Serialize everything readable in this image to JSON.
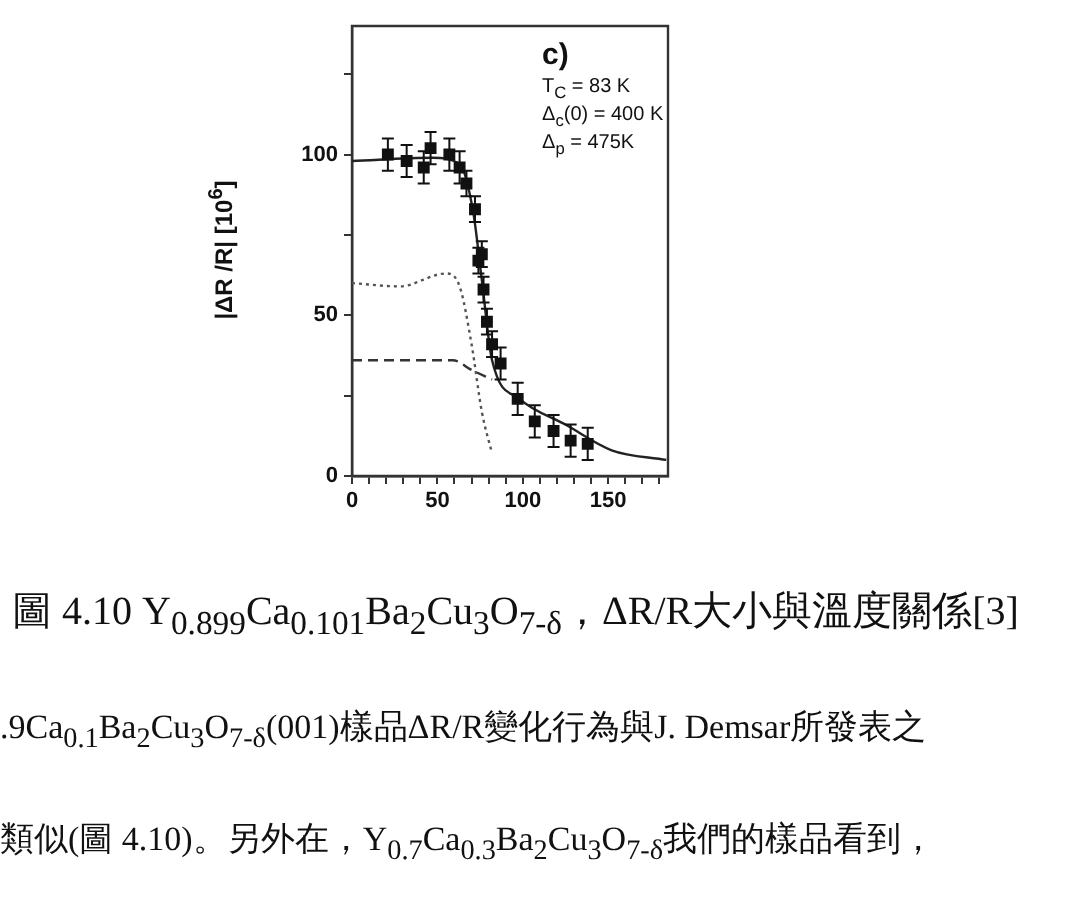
{
  "chart_data": {
    "type": "scatter",
    "title": "圖 4.10 Y$_{0.899}$Ca$_{0.101}$Ba$_{2}$Cu$_{3}$O$_{7-δ}$，ΔR/R大小與溫度關係[3]",
    "ylabel": "|ΔR /R| [10$^{6}$]",
    "xlim": [
      0,
      185
    ],
    "xticks": [
      0,
      {
        "value": 10,
        "label": null
      },
      {
        "value": 20,
        "label": null
      },
      {
        "value": 30,
        "label": null
      },
      {
        "value": 40,
        "label": null
      },
      50,
      {
        "value": 60,
        "label": null
      },
      {
        "value": 70,
        "label": null
      },
      {
        "value": 80,
        "label": null
      },
      {
        "value": 90,
        "label": null
      },
      100,
      {
        "value": 110,
        "label": null
      },
      {
        "value": 120,
        "label": null
      },
      {
        "value": 130,
        "label": null
      },
      {
        "value": 140,
        "label": null
      },
      150,
      {
        "value": 160,
        "label": null
      },
      {
        "value": 170,
        "label": null
      },
      {
        "value": 180,
        "label": null
      }
    ],
    "ylim": [
      0,
      140
    ],
    "yticks": [
      0,
      {
        "value": 25,
        "label": null
      },
      50,
      {
        "value": 75,
        "label": null
      },
      100,
      {
        "value": 125,
        "label": null
      }
    ],
    "grid": false,
    "legend": false,
    "annotations": [
      "c)",
      "T$_{C}$ = 83 K",
      "Δ$_{c}$(0) = 400 K",
      "Δ$_{p}$ = 475K",
      ".9Ca$_{0.1}$Ba$_{2}$Cu$_{3}$O$_{7-δ}$(001)樣品ΔR/R變化行為與J. Demsar所發表之",
      "類似(圖 4.10)。另外在，Y$_{0.7}$Ca$_{0.3}$Ba$_{2}$Cu$_{3}$O$_{7-δ}$我們的樣品看到，"
    ],
    "series": [
      {
        "type": "scatter",
        "color": "#111111",
        "marker": "square",
        "x": [
          21,
          32,
          42,
          46,
          57,
          63,
          67,
          72,
          74,
          76,
          77,
          79,
          82,
          87,
          97,
          107,
          118,
          128,
          138
        ],
        "values": [
          100,
          98,
          96,
          102,
          100,
          96,
          91,
          83,
          67,
          69,
          58,
          48,
          41,
          35,
          24,
          17,
          14,
          11,
          10
        ],
        "errors": [
          5,
          5,
          5,
          5,
          5,
          5,
          4,
          4,
          4,
          4,
          4,
          4,
          4,
          5,
          5,
          5,
          5,
          5,
          5
        ]
      },
      {
        "type": "line",
        "color": "#222222",
        "line_style": "solid",
        "marker": "none",
        "x": [
          0,
          47,
          63,
          71,
          76,
          82,
          98,
          125,
          152,
          184
        ],
        "values": [
          98,
          99,
          97,
          82,
          61,
          36,
          24,
          16,
          8,
          5
        ]
      },
      {
        "type": "line",
        "color": "#555555",
        "line_style": "dotted",
        "marker": "none",
        "x": [
          0,
          28,
          55,
          63,
          70,
          76,
          82
        ],
        "values": [
          60,
          59,
          63,
          59,
          41,
          20,
          7
        ]
      },
      {
        "type": "line",
        "color": "#333333",
        "line_style": "dashed",
        "marker": "none",
        "x": [
          0,
          59,
          70,
          82
        ],
        "values": [
          36,
          36,
          33,
          30
        ]
      }
    ]
  }
}
